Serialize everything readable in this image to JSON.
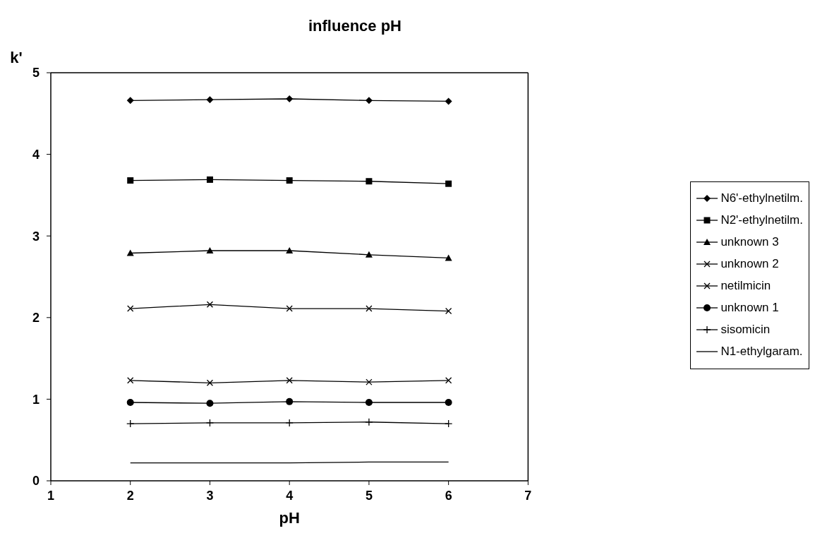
{
  "chart_data": {
    "type": "line",
    "title": "influence pH",
    "xlabel": "pH",
    "ylabel": "k'",
    "x": [
      2,
      3,
      4,
      5,
      6
    ],
    "xlim": [
      1,
      7
    ],
    "xticks": [
      1,
      2,
      3,
      4,
      5,
      6,
      7
    ],
    "ylim": [
      0,
      5
    ],
    "yticks": [
      0,
      1,
      2,
      3,
      4,
      5
    ],
    "legend": "right",
    "line_style": "solid",
    "series": [
      {
        "name": "N6'-ethylnetilm.",
        "color": "#000000",
        "marker": "diamond",
        "values": [
          4.66,
          4.67,
          4.68,
          4.66,
          4.65
        ]
      },
      {
        "name": "N2'-ethylnetilm.",
        "color": "#000000",
        "marker": "square",
        "values": [
          3.68,
          3.69,
          3.68,
          3.67,
          3.64
        ]
      },
      {
        "name": "unknown 3",
        "color": "#000000",
        "marker": "triangle",
        "values": [
          2.79,
          2.82,
          2.82,
          2.77,
          2.73
        ]
      },
      {
        "name": "unknown 2",
        "color": "#000000",
        "marker": "cross",
        "values": [
          2.11,
          2.16,
          2.11,
          2.11,
          2.08
        ]
      },
      {
        "name": "netilmicin",
        "color": "#000000",
        "marker": "cross",
        "values": [
          1.23,
          1.2,
          1.23,
          1.21,
          1.23
        ]
      },
      {
        "name": "unknown 1",
        "color": "#000000",
        "marker": "circle",
        "values": [
          0.96,
          0.95,
          0.97,
          0.96,
          0.96
        ]
      },
      {
        "name": "sisomicin",
        "color": "#000000",
        "marker": "plus",
        "values": [
          0.7,
          0.71,
          0.71,
          0.72,
          0.7
        ]
      },
      {
        "name": "N1-ethylgaram.",
        "color": "#000000",
        "marker": "none",
        "values": [
          0.22,
          0.22,
          0.22,
          0.23,
          0.23
        ]
      }
    ]
  }
}
